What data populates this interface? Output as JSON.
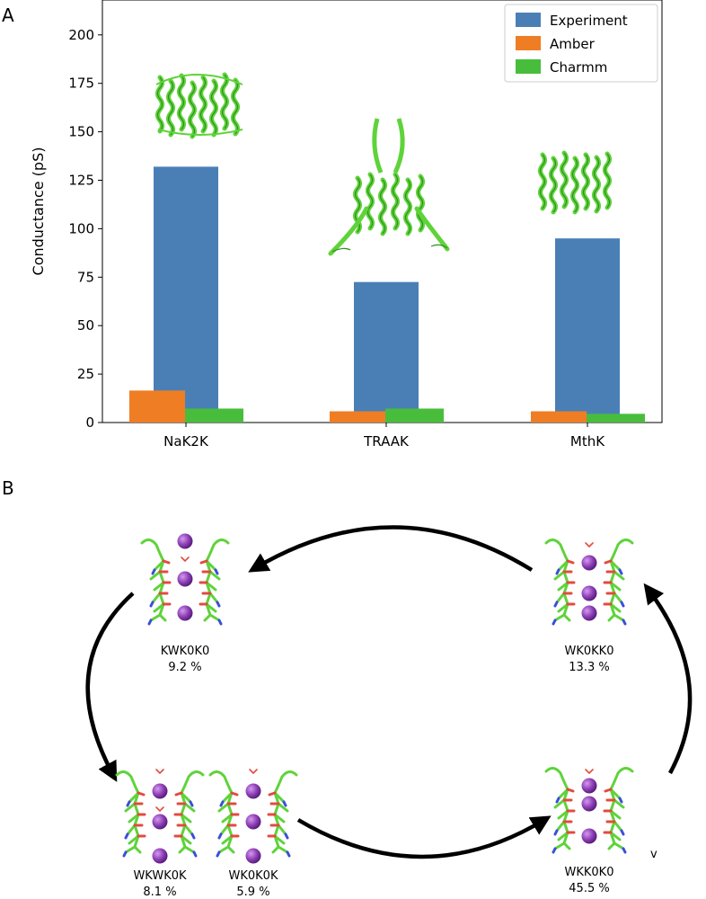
{
  "panels": {
    "a_label": "A",
    "b_label": "B"
  },
  "chart_data": {
    "type": "bar",
    "categories": [
      "NaK2K",
      "TRAAK",
      "MthK"
    ],
    "series": [
      {
        "name": "Experiment",
        "color": "#4a7fb6",
        "values": [
          132,
          72.5,
          95
        ]
      },
      {
        "name": "Amber",
        "color": "#ef7d24",
        "values": [
          16.5,
          5.8,
          5.8
        ]
      },
      {
        "name": "Charmm",
        "color": "#48bd3c",
        "values": [
          7.2,
          7.2,
          4.5
        ]
      }
    ],
    "ylabel": "Conductance (pS)",
    "xlabel": "",
    "ylim": [
      0,
      218
    ],
    "yticks": [
      0,
      25,
      50,
      75,
      100,
      125,
      150,
      175,
      200
    ],
    "legend": "top-right",
    "grid": false
  },
  "cycle": {
    "states": [
      {
        "name": "KWK0K0",
        "pct": "9.2 %"
      },
      {
        "name": "WK0KK0",
        "pct": "13.3 %"
      },
      {
        "name": "WKWK0K",
        "pct": "8.1 %"
      },
      {
        "name": "WK0K0K",
        "pct": "5.9 %"
      },
      {
        "name": "WKK0K0",
        "pct": "45.5 %"
      }
    ],
    "stray_mark": "v"
  },
  "colors": {
    "ion": "#8e3fb5",
    "protein": "#5fd33a",
    "arrow": "#000000"
  }
}
